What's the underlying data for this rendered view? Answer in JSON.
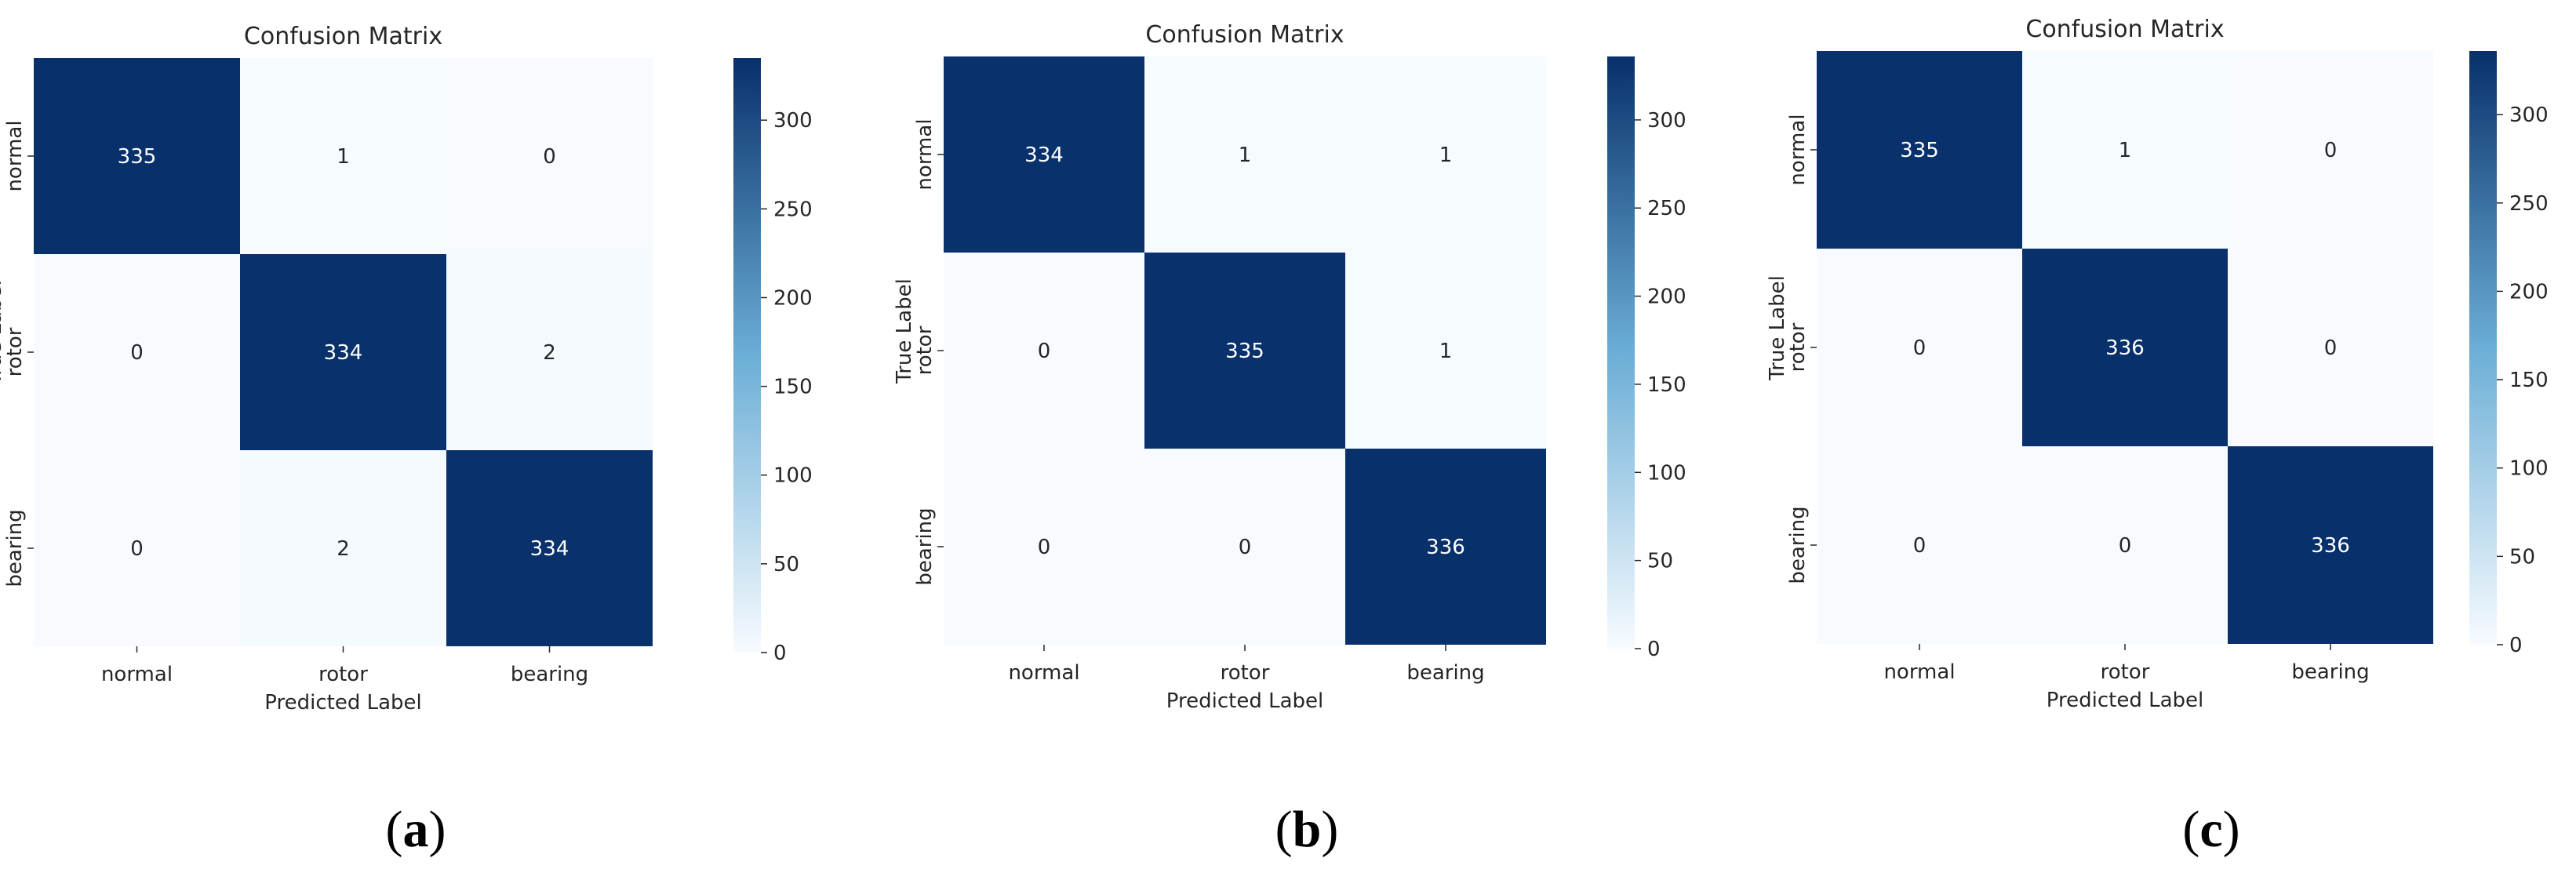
{
  "colors": {
    "cmap_low": "#f7fbff",
    "cmap_mid": "#6baed6",
    "cmap_high": "#08306b",
    "text_on_dark": "#ffffff",
    "text_on_light": "#262626",
    "axis_text": "#262626"
  },
  "chart_data": [
    {
      "type": "heatmap",
      "panel_label": "a",
      "title": "Confusion Matrix",
      "xlabel": "Predicted Label",
      "ylabel": "True Label",
      "x_categories": [
        "normal",
        "rotor",
        "bearing"
      ],
      "y_categories": [
        "normal",
        "rotor",
        "bearing"
      ],
      "values": [
        [
          335,
          1,
          0
        ],
        [
          0,
          334,
          2
        ],
        [
          0,
          2,
          334
        ]
      ],
      "colorbar": {
        "range": [
          0,
          335
        ],
        "ticks": [
          0,
          50,
          100,
          150,
          200,
          250,
          300
        ],
        "tick_labels": [
          "0",
          "50",
          "100",
          "150",
          "200",
          "250",
          "300"
        ],
        "position": "right"
      },
      "grid": false
    },
    {
      "type": "heatmap",
      "panel_label": "b",
      "title": "Confusion Matrix",
      "xlabel": "Predicted Label",
      "ylabel": "True Label",
      "x_categories": [
        "normal",
        "rotor",
        "bearing"
      ],
      "y_categories": [
        "normal",
        "rotor",
        "bearing"
      ],
      "values": [
        [
          334,
          1,
          1
        ],
        [
          0,
          335,
          1
        ],
        [
          0,
          0,
          336
        ]
      ],
      "colorbar": {
        "range": [
          0,
          336
        ],
        "ticks": [
          0,
          50,
          100,
          150,
          200,
          250,
          300
        ],
        "tick_labels": [
          "0",
          "50",
          "100",
          "150",
          "200",
          "250",
          "300"
        ],
        "position": "right"
      },
      "grid": false
    },
    {
      "type": "heatmap",
      "panel_label": "c",
      "title": "Confusion Matrix",
      "xlabel": "Predicted Label",
      "ylabel": "True Label",
      "x_categories": [
        "normal",
        "rotor",
        "bearing"
      ],
      "y_categories": [
        "normal",
        "rotor",
        "bearing"
      ],
      "values": [
        [
          335,
          1,
          0
        ],
        [
          0,
          336,
          0
        ],
        [
          0,
          0,
          336
        ]
      ],
      "colorbar": {
        "range": [
          0,
          336
        ],
        "ticks": [
          0,
          50,
          100,
          150,
          200,
          250,
          300
        ],
        "tick_labels": [
          "0",
          "50",
          "100",
          "150",
          "200",
          "250",
          "300"
        ],
        "position": "right"
      },
      "grid": false
    }
  ]
}
